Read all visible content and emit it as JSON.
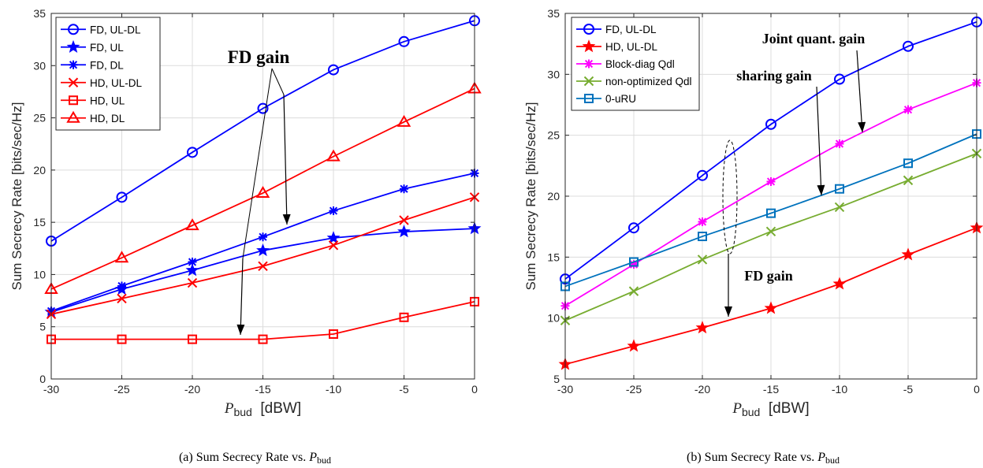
{
  "colors": {
    "blue": "#0000ff",
    "red": "#ff0000",
    "magenta": "#ff00ff",
    "olive": "#77ac30",
    "steel": "#0072bd"
  },
  "chart_data": [
    {
      "type": "line",
      "caption_prefix": "(a) Sum Secrecy Rate vs.",
      "caption_var": "P",
      "caption_sub": "bud",
      "xlabel_var": "P",
      "xlabel_sub": "bud",
      "xlabel_unit": "[dBW]",
      "ylabel": "Sum Secrecy Rate [bits/sec/Hz]",
      "xlim": [
        -30,
        0
      ],
      "ylim": [
        0,
        35
      ],
      "xticks": [
        -30,
        -25,
        -20,
        -15,
        -10,
        -5,
        0
      ],
      "yticks": [
        0,
        5,
        10,
        15,
        20,
        25,
        30,
        35
      ],
      "grid": true,
      "legend_position": "top-left",
      "x": [
        -30,
        -25,
        -20,
        -15,
        -10,
        -5,
        0
      ],
      "series": [
        {
          "name": "FD, UL-DL",
          "color": "#0000ff",
          "marker": "circle",
          "values": [
            13.2,
            17.4,
            21.7,
            25.9,
            29.6,
            32.3,
            34.3
          ]
        },
        {
          "name": "FD, UL",
          "color": "#0000ff",
          "marker": "star",
          "values": [
            6.4,
            8.6,
            10.4,
            12.3,
            13.5,
            14.1,
            14.4
          ]
        },
        {
          "name": "FD, DL",
          "color": "#0000ff",
          "marker": "asterisk",
          "values": [
            6.5,
            8.9,
            11.2,
            13.6,
            16.1,
            18.2,
            19.7
          ]
        },
        {
          "name": "HD, UL-DL",
          "color": "#ff0000",
          "marker": "x",
          "values": [
            6.2,
            7.7,
            9.2,
            10.8,
            12.8,
            15.2,
            17.4
          ]
        },
        {
          "name": "HD, UL",
          "color": "#ff0000",
          "marker": "square",
          "values": [
            3.8,
            3.8,
            3.8,
            3.8,
            4.3,
            5.9,
            7.4
          ]
        },
        {
          "name": "HD, DL",
          "color": "#ff0000",
          "marker": "triangle",
          "values": [
            8.6,
            11.6,
            14.7,
            17.8,
            21.3,
            24.6,
            27.8
          ]
        }
      ],
      "annotations": [
        {
          "text": "FD gain"
        }
      ]
    },
    {
      "type": "line",
      "caption_prefix": "(b) Sum Secrecy Rate vs.",
      "caption_var": "P",
      "caption_sub": "bud",
      "xlabel_var": "P",
      "xlabel_sub": "bud",
      "xlabel_unit": "[dBW]",
      "ylabel": "Sum Secrecy Rate [bits/sec/Hz]",
      "xlim": [
        -30,
        0
      ],
      "ylim": [
        5,
        35
      ],
      "xticks": [
        -30,
        -25,
        -20,
        -15,
        -10,
        -5,
        0
      ],
      "yticks": [
        5,
        10,
        15,
        20,
        25,
        30,
        35
      ],
      "grid": true,
      "legend_position": "top-left",
      "x": [
        -30,
        -25,
        -20,
        -15,
        -10,
        -5,
        0
      ],
      "series": [
        {
          "name": "FD, UL-DL",
          "color": "#0000ff",
          "marker": "circle",
          "values": [
            13.2,
            17.4,
            21.7,
            25.9,
            29.6,
            32.3,
            34.3
          ]
        },
        {
          "name": "HD, UL-DL",
          "color": "#ff0000",
          "marker": "pentagram",
          "values": [
            6.2,
            7.7,
            9.2,
            10.8,
            12.8,
            15.2,
            17.4
          ]
        },
        {
          "name": "Block-diag Qdl",
          "color": "#ff00ff",
          "marker": "asterisk",
          "values": [
            11.0,
            14.4,
            17.9,
            21.2,
            24.3,
            27.1,
            29.3
          ]
        },
        {
          "name": "non-optimized Qdl",
          "color": "#77ac30",
          "marker": "x",
          "values": [
            9.8,
            12.2,
            14.8,
            17.1,
            19.1,
            21.3,
            23.5
          ]
        },
        {
          "name": "0-uRU",
          "color": "#0072bd",
          "marker": "square",
          "values": [
            12.6,
            14.6,
            16.7,
            18.6,
            20.6,
            22.7,
            25.1
          ]
        }
      ],
      "annotations": [
        {
          "text": "Joint quant. gain"
        },
        {
          "text": "sharing gain"
        },
        {
          "text": "FD gain"
        }
      ]
    }
  ]
}
